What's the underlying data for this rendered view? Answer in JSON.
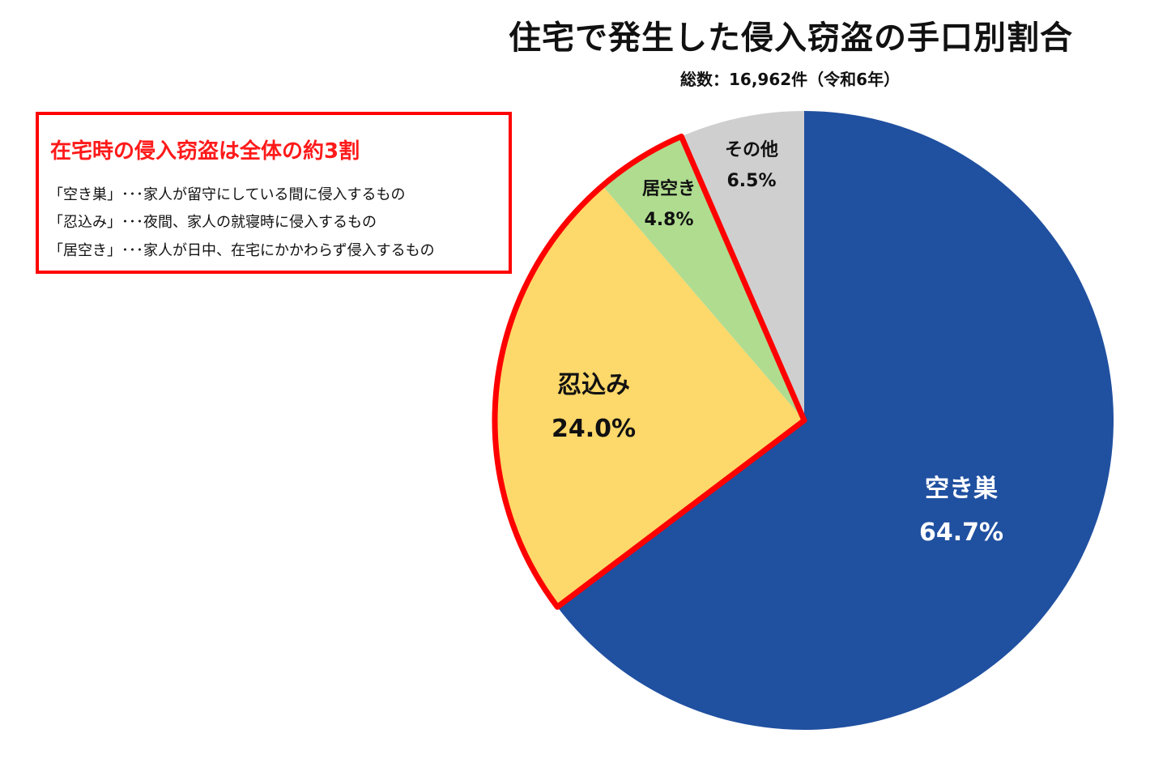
{
  "header": {
    "title": "住宅で発生した侵入窃盗の手口別割合",
    "subtitle": "総数：16,962件（令和6年）"
  },
  "callout": {
    "heading": "在宅時の侵入窃盗は全体の約3割",
    "lines": [
      "「空き巣」･･･家人が留守にしている間に侵入するもの",
      "「忍込み」･･･夜間、家人の就寝時に侵入するもの",
      "「居空き」･･･家人が日中、在宅にかかわらず侵入するもの"
    ],
    "border_color": "#ff0000"
  },
  "slices": [
    {
      "label": "空き巣",
      "value_text": "64.7%",
      "color": "#2050a0",
      "text_color": "#ffffff"
    },
    {
      "label": "忍込み",
      "value_text": "24.0%",
      "color": "#fdd86a",
      "text_color": "#111111"
    },
    {
      "label": "居空き",
      "value_text": "4.8%",
      "color": "#b0dc90",
      "text_color": "#111111"
    },
    {
      "label": "その他",
      "value_text": "6.5%",
      "color": "#d0cfd0",
      "text_color": "#111111"
    }
  ],
  "highlight": {
    "color": "#ff0000",
    "covers": [
      "忍込み",
      "居空き"
    ]
  },
  "chart_data": {
    "type": "pie",
    "title": "住宅で発生した侵入窃盗の手口別割合",
    "subtitle": "総数：16,962件（令和6年）",
    "total": 16962,
    "categories": [
      "空き巣",
      "忍込み",
      "居空き",
      "その他"
    ],
    "values": [
      64.7,
      24.0,
      4.8,
      6.5
    ],
    "unit": "%",
    "start_angle": "12 o'clock, clockwise",
    "colors": [
      "#2050a0",
      "#fdd86a",
      "#b0dc90",
      "#d0cfd0"
    ],
    "annotations": [
      "在宅時の侵入窃盗は全体の約3割"
    ],
    "legend": "none (labels inside slices)"
  }
}
